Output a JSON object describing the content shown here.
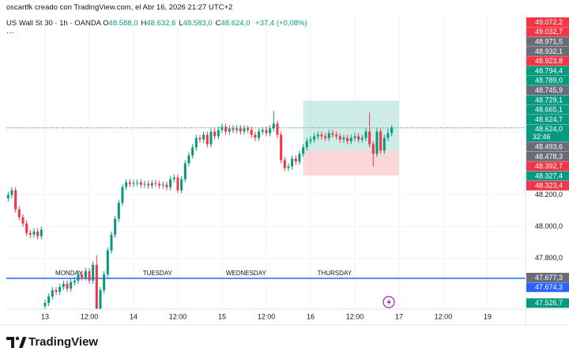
{
  "header": {
    "credit": "oscartfk creado con TradingView.com, el Abr 16, 2026 21:27 UTC+2",
    "symbol": "US Wall St 30 · 1h · OANDA",
    "ohlc": [
      {
        "key": "O",
        "value": "48.588,0"
      },
      {
        "key": "H",
        "value": "48.632,6"
      },
      {
        "key": "L",
        "value": "48.583,0"
      },
      {
        "key": "C",
        "value": "48.624,0"
      }
    ],
    "change": "+37,4 (+0,08%)",
    "menu": "···"
  },
  "chart_data": {
    "type": "candlestick",
    "up_color": "#089981",
    "down_color": "#f23645",
    "grid": true,
    "x": [
      -10,
      -9,
      -8,
      -7,
      -6,
      -5,
      -4,
      -3,
      -2,
      -1,
      0,
      1,
      2,
      3,
      4,
      5,
      6,
      7,
      8,
      9,
      10,
      11,
      12,
      13,
      14,
      15,
      16,
      17,
      18,
      19,
      20,
      21,
      22,
      23,
      24,
      25,
      26,
      27,
      28,
      29,
      30,
      31,
      32,
      33,
      34,
      35,
      36,
      37,
      38,
      39,
      40,
      41,
      42,
      43,
      44,
      45,
      46,
      47,
      48,
      49,
      50,
      51,
      52,
      53,
      54,
      55,
      56,
      57,
      58,
      59,
      60,
      61,
      62,
      63,
      64,
      65,
      66,
      67,
      68,
      69,
      70,
      71,
      72,
      73,
      74,
      75,
      76,
      77,
      78,
      79,
      80,
      81,
      82,
      83,
      84,
      85,
      86,
      87,
      88,
      89,
      90,
      91,
      92,
      93,
      94
    ],
    "open": [
      48180,
      48200,
      48230,
      48110,
      48060,
      48020,
      47960,
      47950,
      47970,
      47940,
      47500,
      47520,
      47560,
      47600,
      47590,
      47620,
      47640,
      47610,
      47650,
      47660,
      47700,
      47680,
      47720,
      47660,
      47760,
      47480,
      47600,
      47700,
      47850,
      47950,
      48050,
      48150,
      48250,
      48280,
      48270,
      48275,
      48280,
      48265,
      48270,
      48260,
      48275,
      48270,
      48260,
      48265,
      48250,
      48300,
      48310,
      48230,
      48300,
      48400,
      48450,
      48500,
      48560,
      48550,
      48580,
      48520,
      48600,
      48570,
      48610,
      48630,
      48600,
      48620,
      48610,
      48620,
      48600,
      48620,
      48610,
      48580,
      48560,
      48600,
      48610,
      48590,
      48620,
      48650,
      48580,
      48420,
      48370,
      48380,
      48430,
      48410,
      48460,
      48500,
      48540,
      48550,
      48570,
      48580,
      48570,
      48560,
      48590,
      48580,
      48570,
      48550,
      48560,
      48540,
      48560,
      48570,
      48550,
      48560,
      48600,
      48520,
      48460,
      48600,
      48480,
      48560,
      48590
    ],
    "high": [
      48220,
      48250,
      48250,
      48130,
      48080,
      48040,
      47980,
      47990,
      47990,
      48000,
      47540,
      47580,
      47620,
      47620,
      47640,
      47660,
      47660,
      47670,
      47680,
      47720,
      47720,
      47740,
      47740,
      47780,
      47820,
      47620,
      47720,
      47870,
      47970,
      48070,
      48170,
      48270,
      48300,
      48300,
      48295,
      48300,
      48300,
      48290,
      48290,
      48295,
      48295,
      48290,
      48285,
      48285,
      48320,
      48330,
      48330,
      48320,
      48420,
      48470,
      48520,
      48580,
      48580,
      48600,
      48600,
      48620,
      48620,
      48630,
      48650,
      48650,
      48640,
      48640,
      48640,
      48640,
      48640,
      48640,
      48630,
      48600,
      48620,
      48630,
      48630,
      48640,
      48730,
      48670,
      48600,
      48440,
      48400,
      48450,
      48450,
      48480,
      48520,
      48560,
      48570,
      48590,
      48600,
      48600,
      48590,
      48610,
      48610,
      48600,
      48590,
      48580,
      48580,
      48580,
      48590,
      48590,
      48580,
      48620,
      48720,
      48540,
      48620,
      48620,
      48580,
      48620,
      48640
    ],
    "low": [
      48160,
      48180,
      48090,
      48040,
      48000,
      47940,
      47930,
      47930,
      47920,
      47920,
      47480,
      47500,
      47540,
      47570,
      47570,
      47600,
      47590,
      47590,
      47630,
      47640,
      47660,
      47660,
      47640,
      47640,
      47440,
      47460,
      47580,
      47680,
      47830,
      47930,
      48030,
      48130,
      48230,
      48250,
      48250,
      48255,
      48245,
      48245,
      48240,
      48240,
      48250,
      48240,
      48240,
      48230,
      48230,
      48280,
      48210,
      48210,
      48280,
      48380,
      48430,
      48480,
      48530,
      48530,
      48500,
      48500,
      48550,
      48550,
      48590,
      48580,
      48580,
      48590,
      48590,
      48580,
      48580,
      48590,
      48560,
      48540,
      48540,
      48580,
      48570,
      48570,
      48600,
      48560,
      48400,
      48350,
      48350,
      48360,
      48390,
      48390,
      48440,
      48480,
      48520,
      48530,
      48550,
      48550,
      48540,
      48540,
      48560,
      48550,
      48530,
      48530,
      48520,
      48520,
      48540,
      48530,
      48530,
      48540,
      48500,
      48380,
      48440,
      48460,
      48460,
      48540,
      48570
    ],
    "close": [
      48200,
      48230,
      48110,
      48060,
      48020,
      47960,
      47950,
      47970,
      47940,
      47980,
      47520,
      47560,
      47600,
      47590,
      47620,
      47640,
      47610,
      47650,
      47660,
      47700,
      47680,
      47720,
      47660,
      47760,
      47480,
      47600,
      47700,
      47850,
      47950,
      48050,
      48150,
      48250,
      48280,
      48270,
      48275,
      48280,
      48265,
      48270,
      48260,
      48275,
      48270,
      48260,
      48265,
      48250,
      48300,
      48310,
      48230,
      48300,
      48400,
      48450,
      48500,
      48560,
      48550,
      48580,
      48520,
      48600,
      48570,
      48610,
      48630,
      48600,
      48620,
      48610,
      48620,
      48600,
      48620,
      48610,
      48580,
      48560,
      48600,
      48610,
      48590,
      48620,
      48650,
      48580,
      48420,
      48370,
      48380,
      48430,
      48410,
      48460,
      48500,
      48540,
      48550,
      48570,
      48580,
      48570,
      48560,
      48590,
      48580,
      48570,
      48550,
      48560,
      48540,
      48560,
      48570,
      48550,
      48560,
      48600,
      48520,
      48460,
      48600,
      48480,
      48560,
      48590,
      48624
    ],
    "xlim": [
      -10.5,
      130.3
    ],
    "ylim": [
      47480,
      49340
    ],
    "xticks": [
      {
        "value": 0,
        "label": "13"
      },
      {
        "value": 12,
        "label": "12:00"
      },
      {
        "value": 24,
        "label": "14"
      },
      {
        "value": 36,
        "label": "12:00"
      },
      {
        "value": 48,
        "label": "15"
      },
      {
        "value": 60,
        "label": "12:00"
      },
      {
        "value": 72,
        "label": "16"
      },
      {
        "value": 84,
        "label": "12:00"
      },
      {
        "value": 96,
        "label": "17"
      },
      {
        "value": 108,
        "label": "12:00"
      },
      {
        "value": 120,
        "label": "19"
      }
    ],
    "yticks": [
      {
        "value": 48200,
        "label": "48.200,0"
      },
      {
        "value": 48000,
        "label": "48.000,0"
      },
      {
        "value": 47800,
        "label": "47.800,0"
      }
    ],
    "day_labels": [
      "MONDAY",
      "TUESDAY",
      "WEDNESDAY",
      "THURSDAY"
    ],
    "hline": {
      "value": 47674.3,
      "color": "#2962ff"
    },
    "position": {
      "x": [
        70,
        96
      ],
      "target": 48794.4,
      "entry": 48478.3,
      "stop": 48323.4
    },
    "price_labels_top": [
      {
        "label": "49.072,2",
        "color": "#f23645"
      },
      {
        "label": "49.032,7",
        "color": "#f23645"
      },
      {
        "label": "48.971,5",
        "color": "#6a6d78"
      },
      {
        "label": "48.932,1",
        "color": "#6a6d78"
      },
      {
        "label": "48.923,8",
        "color": "#f23645"
      },
      {
        "label": "48.794,4",
        "color": "#089981"
      },
      {
        "label": "48.789,0",
        "color": "#089981"
      },
      {
        "label": "48.745,9",
        "color": "#6a6d78"
      },
      {
        "label": "48.729,1",
        "color": "#089981"
      },
      {
        "label": "48.665,1",
        "color": "#089981"
      },
      {
        "label": "48.624,7",
        "color": "#089981"
      },
      {
        "label": "48.624,0",
        "sub": "32:46",
        "color": "#089981"
      },
      {
        "label": "48.493,6",
        "color": "#6a6d78"
      },
      {
        "label": "48.478,3",
        "color": "#6a6d78"
      },
      {
        "label": "48.392,7",
        "color": "#f23645"
      },
      {
        "label": "48.327,4",
        "color": "#089981"
      },
      {
        "label": "48.323,4",
        "color": "#f23645"
      }
    ],
    "price_labels_bottom": [
      {
        "label": "47.677,3",
        "color": "#6a6d78"
      },
      {
        "label": "47.674,3",
        "color": "#2962ff"
      },
      {
        "label": "47.526,7",
        "color": "#089981"
      }
    ]
  },
  "footer": {
    "logo": "TradingView"
  }
}
